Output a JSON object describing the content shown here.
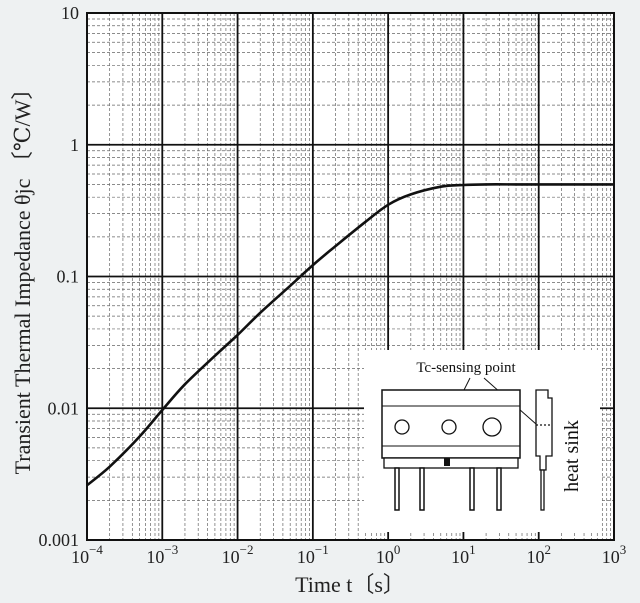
{
  "chart_data": {
    "type": "line",
    "xscale": "log",
    "yscale": "log",
    "xlim": [
      0.0001,
      1000
    ],
    "ylim": [
      0.001,
      10
    ],
    "grid": true,
    "xlabel": "Time  t〔s〕",
    "ylabel": "Transient Thermal Impedance  θjc 〔℃/W〕",
    "x_ticks": [
      {
        "value": 0.0001,
        "base": "10",
        "exp": "−4"
      },
      {
        "value": 0.001,
        "base": "10",
        "exp": "−3"
      },
      {
        "value": 0.01,
        "base": "10",
        "exp": "−2"
      },
      {
        "value": 0.1,
        "base": "10",
        "exp": "−1"
      },
      {
        "value": 1,
        "base": "10",
        "exp": "0"
      },
      {
        "value": 10,
        "base": "10",
        "exp": "1"
      },
      {
        "value": 100,
        "base": "10",
        "exp": "2"
      },
      {
        "value": 1000,
        "base": "10",
        "exp": "3"
      }
    ],
    "y_ticks": [
      {
        "value": 10,
        "label": "10"
      },
      {
        "value": 1,
        "label": "1"
      },
      {
        "value": 0.1,
        "label": "0.1"
      },
      {
        "value": 0.01,
        "label": "0.01"
      },
      {
        "value": 0.001,
        "label": "0.001"
      }
    ],
    "series": [
      {
        "points": [
          [
            0.0001,
            0.0026
          ],
          [
            0.0002,
            0.0036
          ],
          [
            0.0005,
            0.0061
          ],
          [
            0.001,
            0.0097
          ],
          [
            0.002,
            0.0152
          ],
          [
            0.005,
            0.025
          ],
          [
            0.01,
            0.036
          ],
          [
            0.02,
            0.053
          ],
          [
            0.05,
            0.085
          ],
          [
            0.1,
            0.122
          ],
          [
            0.2,
            0.17
          ],
          [
            0.5,
            0.26
          ],
          [
            1,
            0.35
          ],
          [
            2,
            0.42
          ],
          [
            5,
            0.48
          ],
          [
            10,
            0.495
          ],
          [
            20,
            0.5
          ],
          [
            50,
            0.5
          ],
          [
            100,
            0.5
          ],
          [
            1000,
            0.5
          ]
        ]
      }
    ],
    "annotations": {
      "sensing_point": "Tc-sensing point",
      "heat_sink": "heat sink"
    }
  }
}
